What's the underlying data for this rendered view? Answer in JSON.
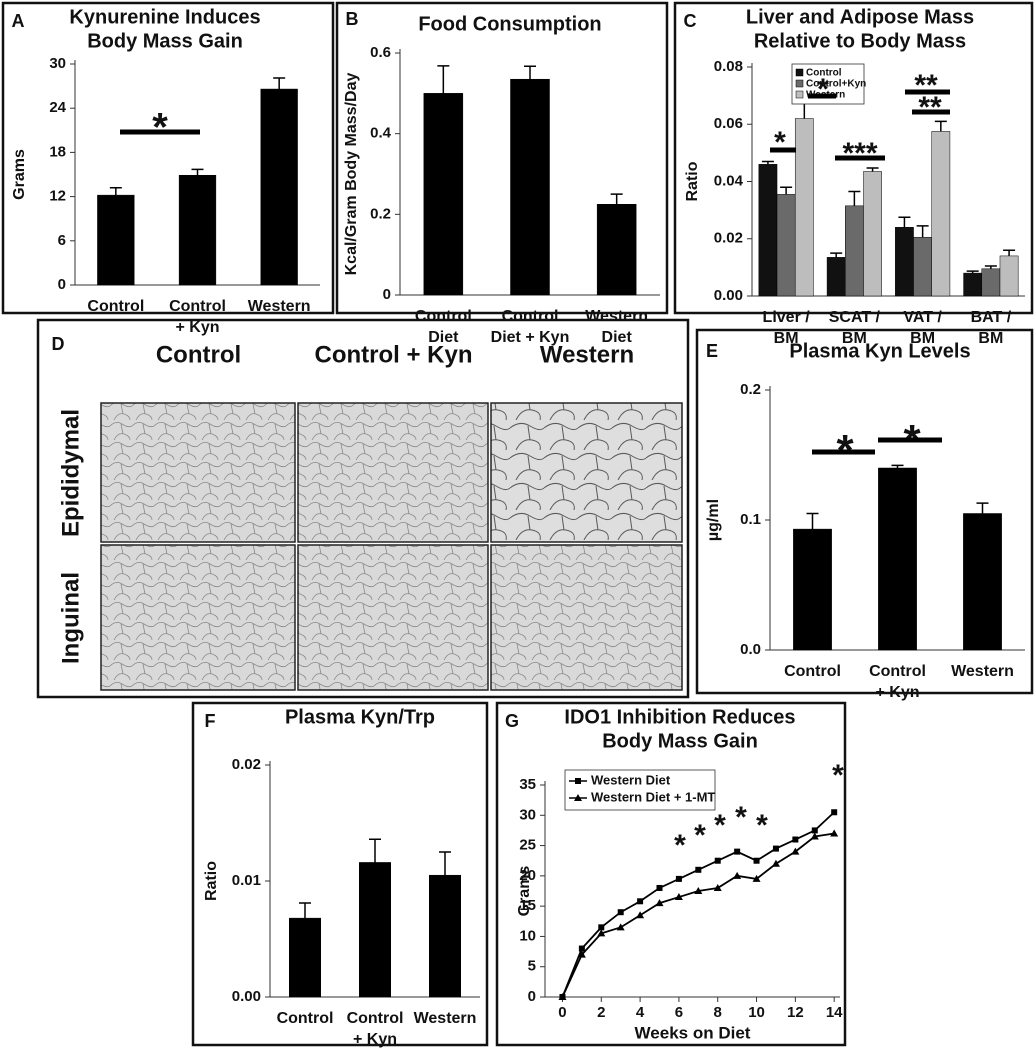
{
  "chart_data": [
    {
      "type": "bar",
      "panel_label": "A",
      "title": [
        "Kynurenine Induces",
        "Body Mass Gain"
      ],
      "ylabel": "Grams",
      "categories": [
        [
          "Control"
        ],
        [
          "Control",
          "+ Kyn"
        ],
        [
          "Western"
        ]
      ],
      "values": [
        12.2,
        14.9,
        26.6
      ],
      "errors": [
        1.0,
        0.8,
        1.5
      ],
      "color": "#000000",
      "ylim": [
        0,
        30
      ],
      "yticks": [
        0,
        6,
        12,
        18,
        24,
        30
      ],
      "annotations": [
        "*"
      ]
    },
    {
      "type": "bar",
      "panel_label": "B",
      "title": [
        "Food Consumption"
      ],
      "ylabel": "Kcal/Gram Body Mass/Day",
      "categories": [
        [
          "Control",
          "Diet"
        ],
        [
          "Control",
          "Diet + Kyn"
        ],
        [
          "Western",
          "Diet"
        ]
      ],
      "values": [
        0.5,
        0.535,
        0.225
      ],
      "errors": [
        0.068,
        0.032,
        0.025
      ],
      "color": "#000000",
      "ylim": [
        0,
        0.6
      ],
      "yticks": [
        0,
        0.2,
        0.4,
        0.6
      ],
      "annotations": []
    },
    {
      "type": "bar",
      "panel_label": "C",
      "title": [
        "Liver and Adipose Mass",
        "Relative to Body Mass"
      ],
      "ylabel": "Ratio",
      "categories": [
        [
          "Liver /",
          "BM"
        ],
        [
          "SCAT /",
          "BM"
        ],
        [
          "VAT /",
          "BM"
        ],
        [
          "BAT /",
          "BM"
        ]
      ],
      "series": [
        {
          "name": "Control",
          "color": "#111111",
          "values": [
            0.046,
            0.0135,
            0.024,
            0.008
          ],
          "errors": [
            0.001,
            0.0015,
            0.0035,
            0.0007
          ]
        },
        {
          "name": "Control+Kyn",
          "color": "#6a6a6a",
          "values": [
            0.0355,
            0.0315,
            0.0205,
            0.0095
          ],
          "errors": [
            0.0025,
            0.005,
            0.004,
            0.001
          ]
        },
        {
          "name": "Western",
          "color": "#bdbdbd",
          "values": [
            0.062,
            0.0435,
            0.0575,
            0.014
          ],
          "errors": [
            0.007,
            0.0012,
            0.0035,
            0.002
          ]
        }
      ],
      "ylim": [
        0,
        0.08
      ],
      "yticks": [
        {
          "value": 0,
          "label": "0.00"
        },
        {
          "value": 0.02,
          "label": "0.02"
        },
        {
          "value": 0.04,
          "label": "0.04"
        },
        {
          "value": 0.06,
          "label": "0.06"
        },
        {
          "value": 0.08,
          "label": "0.08"
        }
      ],
      "annotations": [
        "*",
        "*",
        "***",
        "**",
        "**"
      ]
    },
    {
      "type": "micrograph-grid",
      "panel_label": "D",
      "columns": [
        "Control",
        "Control + Kyn",
        "Western"
      ],
      "rows": [
        "Epididymal",
        "Inguinal"
      ]
    },
    {
      "type": "bar",
      "panel_label": "E",
      "title": [
        "Plasma Kyn Levels"
      ],
      "ylabel": "µg/ml",
      "categories": [
        [
          "Control"
        ],
        [
          "Control",
          "+ Kyn"
        ],
        [
          "Western"
        ]
      ],
      "values": [
        0.093,
        0.14,
        0.105
      ],
      "errors": [
        0.012,
        0.002,
        0.008
      ],
      "color": "#000000",
      "ylim": [
        0,
        0.2
      ],
      "yticks": [
        {
          "value": 0,
          "label": "0.0"
        },
        0.1,
        0.2
      ],
      "annotations": [
        "*",
        "*"
      ]
    },
    {
      "type": "bar",
      "panel_label": "F",
      "title": [
        "Plasma Kyn/Trp"
      ],
      "ylabel": "Ratio",
      "categories": [
        [
          "Control"
        ],
        [
          "Control",
          "+ Kyn"
        ],
        [
          "Western"
        ]
      ],
      "values": [
        0.0068,
        0.0116,
        0.0105
      ],
      "errors": [
        0.0013,
        0.002,
        0.002
      ],
      "color": "#000000",
      "ylim": [
        0,
        0.02
      ],
      "yticks": [
        {
          "value": 0,
          "label": "0.00"
        },
        {
          "value": 0.01,
          "label": "0.01"
        },
        {
          "value": 0.02,
          "label": "0.02"
        }
      ],
      "annotations": []
    },
    {
      "type": "line",
      "panel_label": "G",
      "title": [
        "IDO1 Inhibition Reduces",
        "Body Mass Gain"
      ],
      "xlabel": "Weeks on Diet",
      "ylabel": "Grams",
      "x": [
        0,
        1,
        2,
        3,
        4,
        5,
        6,
        7,
        8,
        9,
        10,
        11,
        12,
        13,
        14
      ],
      "series": [
        {
          "name": "Western Diet",
          "color": "#000000",
          "marker": "square",
          "values": [
            0,
            8,
            11.5,
            14,
            15.8,
            18,
            19.5,
            21,
            22.5,
            24,
            22.5,
            24.5,
            26,
            27.5,
            30.5
          ]
        },
        {
          "name": "Western Diet + 1-MT",
          "color": "#000000",
          "marker": "triangle",
          "values": [
            0,
            7,
            10.5,
            11.5,
            13.5,
            15.5,
            16.5,
            17.5,
            18,
            20,
            19.5,
            22,
            24,
            26.5,
            27
          ]
        }
      ],
      "xlim": [
        -0.9,
        14.3
      ],
      "xticks": [
        0,
        2,
        4,
        6,
        8,
        10,
        12,
        14
      ],
      "ylim": [
        0,
        35
      ],
      "yticks": [
        0,
        5,
        10,
        15,
        20,
        25,
        30,
        35
      ],
      "annotations": [
        "*",
        "*",
        "*",
        "*",
        "*",
        "*"
      ]
    }
  ]
}
